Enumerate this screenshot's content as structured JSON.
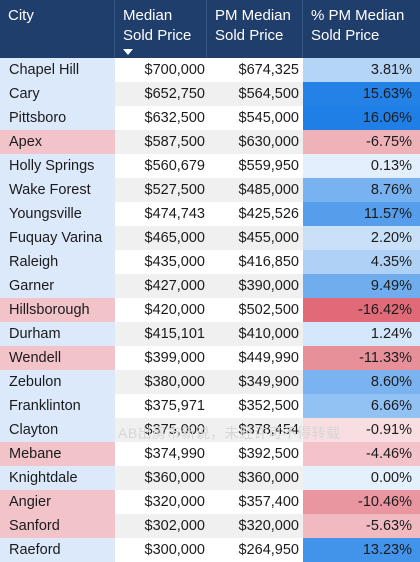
{
  "header": {
    "city": "City",
    "median_line1": "Median",
    "median_line2": "Sold Price",
    "pm_line1": "PM Median",
    "pm_line2": "Sold Price",
    "pct_line1": "% PM Median",
    "pct_line2": "Sold Price"
  },
  "sort": {
    "column": "Median Sold Price",
    "direction": "descending",
    "icon": "sort-down-icon"
  },
  "colors": {
    "header_bg": "#1f3e6b",
    "positive_strong": "#1f7fe6",
    "negative_strong": "#e06a78",
    "city_highlight_negative": "#f2c4ca",
    "city_highlight_positive": "#dbe9fb"
  },
  "rows": [
    {
      "city": "Chapel Hill",
      "median": "$700,000",
      "pm": "$674,325",
      "pct": "3.81%",
      "pct_value": 3.81
    },
    {
      "city": "Cary",
      "median": "$652,750",
      "pm": "$564,500",
      "pct": "15.63%",
      "pct_value": 15.63
    },
    {
      "city": "Pittsboro",
      "median": "$632,500",
      "pm": "$545,000",
      "pct": "16.06%",
      "pct_value": 16.06
    },
    {
      "city": "Apex",
      "median": "$587,500",
      "pm": "$630,000",
      "pct": "-6.75%",
      "pct_value": -6.75
    },
    {
      "city": "Holly Springs",
      "median": "$560,679",
      "pm": "$559,950",
      "pct": "0.13%",
      "pct_value": 0.13
    },
    {
      "city": "Wake Forest",
      "median": "$527,500",
      "pm": "$485,000",
      "pct": "8.76%",
      "pct_value": 8.76
    },
    {
      "city": "Youngsville",
      "median": "$474,743",
      "pm": "$425,526",
      "pct": "11.57%",
      "pct_value": 11.57
    },
    {
      "city": "Fuquay Varina",
      "median": "$465,000",
      "pm": "$455,000",
      "pct": "2.20%",
      "pct_value": 2.2
    },
    {
      "city": "Raleigh",
      "median": "$435,000",
      "pm": "$416,850",
      "pct": "4.35%",
      "pct_value": 4.35
    },
    {
      "city": "Garner",
      "median": "$427,000",
      "pm": "$390,000",
      "pct": "9.49%",
      "pct_value": 9.49
    },
    {
      "city": "Hillsborough",
      "median": "$420,000",
      "pm": "$502,500",
      "pct": "-16.42%",
      "pct_value": -16.42
    },
    {
      "city": "Durham",
      "median": "$415,101",
      "pm": "$410,000",
      "pct": "1.24%",
      "pct_value": 1.24
    },
    {
      "city": "Wendell",
      "median": "$399,000",
      "pm": "$449,990",
      "pct": "-11.33%",
      "pct_value": -11.33
    },
    {
      "city": "Zebulon",
      "median": "$380,000",
      "pm": "$349,900",
      "pct": "8.60%",
      "pct_value": 8.6
    },
    {
      "city": "Franklinton",
      "median": "$375,971",
      "pm": "$352,500",
      "pct": "6.66%",
      "pct_value": 6.66
    },
    {
      "city": "Clayton",
      "median": "$375,000",
      "pm": "$378,454",
      "pct": "-0.91%",
      "pct_value": -0.91
    },
    {
      "city": "Mebane",
      "median": "$374,990",
      "pm": "$392,500",
      "pct": "-4.46%",
      "pct_value": -4.46
    },
    {
      "city": "Knightdale",
      "median": "$360,000",
      "pm": "$360,000",
      "pct": "0.00%",
      "pct_value": 0.0
    },
    {
      "city": "Angier",
      "median": "$320,000",
      "pm": "$357,400",
      "pct": "-10.46%",
      "pct_value": -10.46
    },
    {
      "city": "Sanford",
      "median": "$302,000",
      "pm": "$320,000",
      "pct": "-5.63%",
      "pct_value": -5.63
    },
    {
      "city": "Raeford",
      "median": "$300,000",
      "pm": "$264,950",
      "pct": "13.23%",
      "pct_value": 13.23
    }
  ],
  "watermark": "AB出房市新说，未经许可不得转载"
}
